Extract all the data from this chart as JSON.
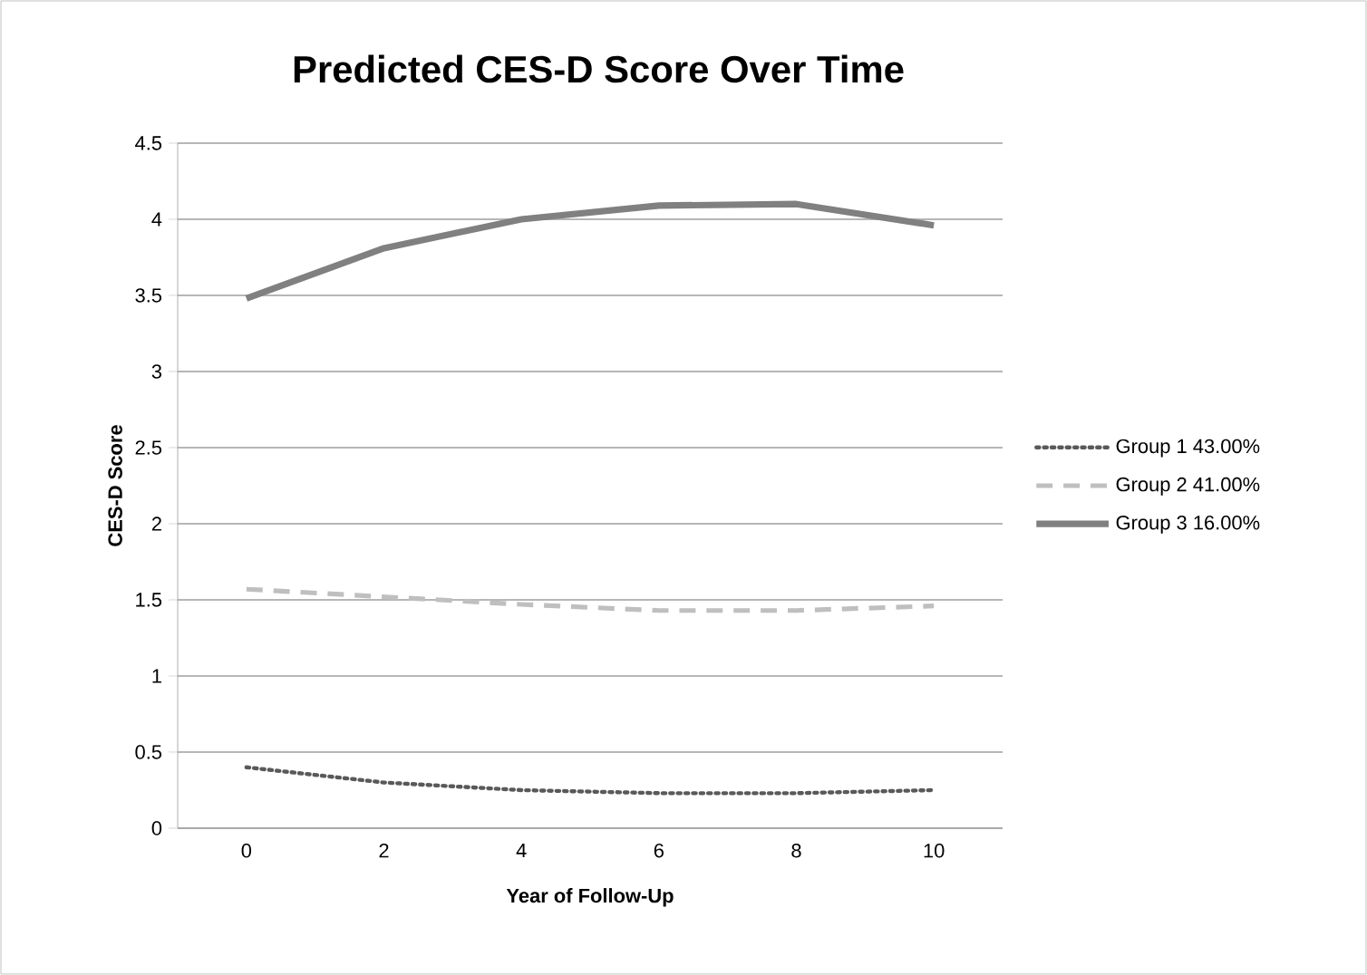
{
  "chart_data": {
    "type": "line",
    "title": "Predicted CES-D Score Over Time",
    "xlabel": "Year of Follow-Up",
    "ylabel": "CES-D Score",
    "categories": [
      "0",
      "2",
      "4",
      "6",
      "8",
      "10"
    ],
    "series": [
      {
        "name": "Group 1 43.00%",
        "color": "#595959",
        "line_style": "dotted",
        "values": [
          0.4,
          0.3,
          0.25,
          0.23,
          0.23,
          0.25
        ]
      },
      {
        "name": "Group 2 41.00%",
        "color": "#bfbfbf",
        "line_style": "dashed",
        "values": [
          1.57,
          1.52,
          1.47,
          1.43,
          1.43,
          1.46
        ]
      },
      {
        "name": "Group 3 16.00%",
        "color": "#808080",
        "line_style": "solid",
        "values": [
          3.48,
          3.81,
          4.0,
          4.09,
          4.1,
          3.96
        ]
      }
    ],
    "ylim": [
      0,
      4.5
    ],
    "yticks": [
      0,
      0.5,
      1,
      1.5,
      2,
      2.5,
      3,
      3.5,
      4,
      4.5
    ],
    "grid": "y",
    "legend": "right"
  }
}
